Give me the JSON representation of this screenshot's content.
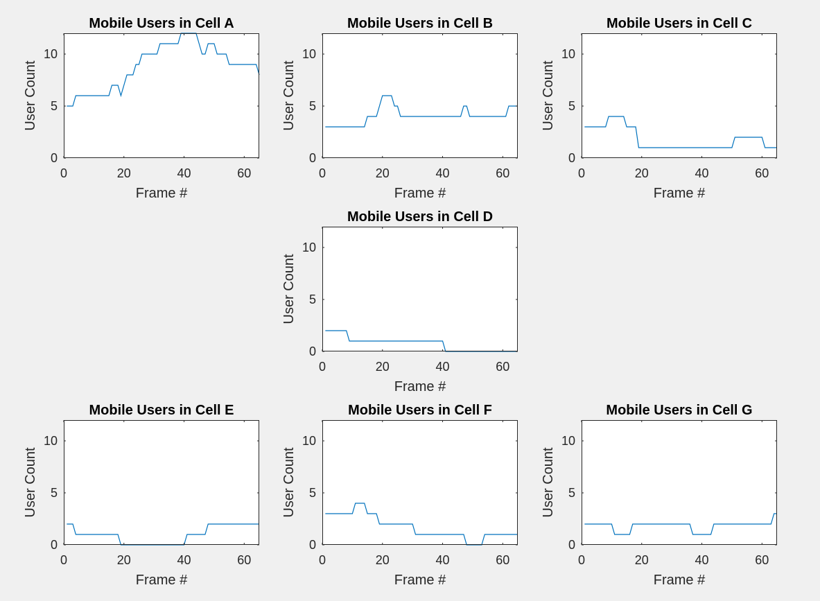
{
  "colors": {
    "figure_bg": "#f0f0f0",
    "axes_bg": "#ffffff",
    "axis": "#262626",
    "line": "#0072bd"
  },
  "chart_data": [
    {
      "type": "line",
      "title": "Mobile Users in Cell A",
      "xlabel": "Frame #",
      "ylabel": "User Count",
      "xlim": [
        0,
        65
      ],
      "ylim": [
        0,
        12
      ],
      "xticks": [
        0,
        20,
        40,
        60
      ],
      "yticks": [
        0,
        5,
        10
      ],
      "grid": false,
      "series": [
        {
          "x": [
            1,
            2,
            3,
            4,
            5,
            6,
            7,
            8,
            9,
            10,
            11,
            12,
            13,
            14,
            15,
            16,
            17,
            18,
            19,
            20,
            21,
            22,
            23,
            24,
            25,
            26,
            27,
            28,
            29,
            30,
            31,
            32,
            33,
            34,
            35,
            36,
            37,
            38,
            39,
            40,
            41,
            42,
            43,
            44,
            45,
            46,
            47,
            48,
            49,
            50,
            51,
            52,
            53,
            54,
            55,
            56,
            57,
            58,
            59,
            60,
            61,
            62,
            63,
            64,
            65
          ],
          "y": [
            5,
            5,
            5,
            6,
            6,
            6,
            6,
            6,
            6,
            6,
            6,
            6,
            6,
            6,
            6,
            7,
            7,
            7,
            6,
            7,
            8,
            8,
            8,
            9,
            9,
            10,
            10,
            10,
            10,
            10,
            10,
            11,
            11,
            11,
            11,
            11,
            11,
            11,
            12,
            12,
            12,
            12,
            12,
            12,
            11,
            10,
            10,
            11,
            11,
            11,
            10,
            10,
            10,
            10,
            9,
            9,
            9,
            9,
            9,
            9,
            9,
            9,
            9,
            9,
            8
          ]
        }
      ]
    },
    {
      "type": "line",
      "title": "Mobile Users in Cell B",
      "xlabel": "Frame #",
      "ylabel": "User Count",
      "xlim": [
        0,
        65
      ],
      "ylim": [
        0,
        12
      ],
      "xticks": [
        0,
        20,
        40,
        60
      ],
      "yticks": [
        0,
        5,
        10
      ],
      "grid": false,
      "series": [
        {
          "x": [
            1,
            2,
            3,
            4,
            5,
            6,
            7,
            8,
            9,
            10,
            11,
            12,
            13,
            14,
            15,
            16,
            17,
            18,
            19,
            20,
            21,
            22,
            23,
            24,
            25,
            26,
            27,
            28,
            29,
            30,
            31,
            32,
            33,
            34,
            35,
            36,
            37,
            38,
            39,
            40,
            41,
            42,
            43,
            44,
            45,
            46,
            47,
            48,
            49,
            50,
            51,
            52,
            53,
            54,
            55,
            56,
            57,
            58,
            59,
            60,
            61,
            62,
            63,
            64,
            65
          ],
          "y": [
            3,
            3,
            3,
            3,
            3,
            3,
            3,
            3,
            3,
            3,
            3,
            3,
            3,
            3,
            4,
            4,
            4,
            4,
            5,
            6,
            6,
            6,
            6,
            5,
            5,
            4,
            4,
            4,
            4,
            4,
            4,
            4,
            4,
            4,
            4,
            4,
            4,
            4,
            4,
            4,
            4,
            4,
            4,
            4,
            4,
            4,
            5,
            5,
            4,
            4,
            4,
            4,
            4,
            4,
            4,
            4,
            4,
            4,
            4,
            4,
            4,
            5,
            5,
            5,
            5
          ]
        }
      ]
    },
    {
      "type": "line",
      "title": "Mobile Users in Cell C",
      "xlabel": "Frame #",
      "ylabel": "User Count",
      "xlim": [
        0,
        65
      ],
      "ylim": [
        0,
        12
      ],
      "xticks": [
        0,
        20,
        40,
        60
      ],
      "yticks": [
        0,
        5,
        10
      ],
      "grid": false,
      "series": [
        {
          "x": [
            1,
            2,
            3,
            4,
            5,
            6,
            7,
            8,
            9,
            10,
            11,
            12,
            13,
            14,
            15,
            16,
            17,
            18,
            19,
            20,
            21,
            22,
            23,
            24,
            25,
            26,
            27,
            28,
            29,
            30,
            31,
            32,
            33,
            34,
            35,
            36,
            37,
            38,
            39,
            40,
            41,
            42,
            43,
            44,
            45,
            46,
            47,
            48,
            49,
            50,
            51,
            52,
            53,
            54,
            55,
            56,
            57,
            58,
            59,
            60,
            61,
            62,
            63,
            64,
            65
          ],
          "y": [
            3,
            3,
            3,
            3,
            3,
            3,
            3,
            3,
            4,
            4,
            4,
            4,
            4,
            4,
            3,
            3,
            3,
            3,
            1,
            1,
            1,
            1,
            1,
            1,
            1,
            1,
            1,
            1,
            1,
            1,
            1,
            1,
            1,
            1,
            1,
            1,
            1,
            1,
            1,
            1,
            1,
            1,
            1,
            1,
            1,
            1,
            1,
            1,
            1,
            1,
            2,
            2,
            2,
            2,
            2,
            2,
            2,
            2,
            2,
            2,
            1,
            1,
            1,
            1,
            1
          ]
        }
      ]
    },
    {
      "type": "line",
      "title": "Mobile Users in Cell D",
      "xlabel": "Frame #",
      "ylabel": "User Count",
      "xlim": [
        0,
        65
      ],
      "ylim": [
        0,
        12
      ],
      "xticks": [
        0,
        20,
        40,
        60
      ],
      "yticks": [
        0,
        5,
        10
      ],
      "grid": false,
      "series": [
        {
          "x": [
            1,
            2,
            3,
            4,
            5,
            6,
            7,
            8,
            9,
            10,
            11,
            12,
            13,
            14,
            15,
            16,
            17,
            18,
            19,
            20,
            21,
            22,
            23,
            24,
            25,
            26,
            27,
            28,
            29,
            30,
            31,
            32,
            33,
            34,
            35,
            36,
            37,
            38,
            39,
            40,
            41,
            42,
            43,
            44,
            45,
            46,
            47,
            48,
            49,
            50,
            51,
            52,
            53,
            54,
            55,
            56,
            57,
            58,
            59,
            60,
            61,
            62,
            63,
            64,
            65
          ],
          "y": [
            2,
            2,
            2,
            2,
            2,
            2,
            2,
            2,
            1,
            1,
            1,
            1,
            1,
            1,
            1,
            1,
            1,
            1,
            1,
            1,
            1,
            1,
            1,
            1,
            1,
            1,
            1,
            1,
            1,
            1,
            1,
            1,
            1,
            1,
            1,
            1,
            1,
            1,
            1,
            1,
            0,
            0,
            0,
            0,
            0,
            0,
            0,
            0,
            0,
            0,
            0,
            0,
            0,
            0,
            0,
            0,
            0,
            0,
            0,
            0,
            0,
            0,
            0,
            0,
            0
          ]
        }
      ]
    },
    {
      "type": "line",
      "title": "Mobile Users in Cell E",
      "xlabel": "Frame #",
      "ylabel": "User Count",
      "xlim": [
        0,
        65
      ],
      "ylim": [
        0,
        12
      ],
      "xticks": [
        0,
        20,
        40,
        60
      ],
      "yticks": [
        0,
        5,
        10
      ],
      "grid": false,
      "series": [
        {
          "x": [
            1,
            2,
            3,
            4,
            5,
            6,
            7,
            8,
            9,
            10,
            11,
            12,
            13,
            14,
            15,
            16,
            17,
            18,
            19,
            20,
            21,
            22,
            23,
            24,
            25,
            26,
            27,
            28,
            29,
            30,
            31,
            32,
            33,
            34,
            35,
            36,
            37,
            38,
            39,
            40,
            41,
            42,
            43,
            44,
            45,
            46,
            47,
            48,
            49,
            50,
            51,
            52,
            53,
            54,
            55,
            56,
            57,
            58,
            59,
            60,
            61,
            62,
            63,
            64,
            65
          ],
          "y": [
            2,
            2,
            2,
            1,
            1,
            1,
            1,
            1,
            1,
            1,
            1,
            1,
            1,
            1,
            1,
            1,
            1,
            1,
            0,
            0,
            0,
            0,
            0,
            0,
            0,
            0,
            0,
            0,
            0,
            0,
            0,
            0,
            0,
            0,
            0,
            0,
            0,
            0,
            0,
            0,
            1,
            1,
            1,
            1,
            1,
            1,
            1,
            2,
            2,
            2,
            2,
            2,
            2,
            2,
            2,
            2,
            2,
            2,
            2,
            2,
            2,
            2,
            2,
            2,
            2
          ]
        }
      ]
    },
    {
      "type": "line",
      "title": "Mobile Users in Cell F",
      "xlabel": "Frame #",
      "ylabel": "User Count",
      "xlim": [
        0,
        65
      ],
      "ylim": [
        0,
        12
      ],
      "xticks": [
        0,
        20,
        40,
        60
      ],
      "yticks": [
        0,
        5,
        10
      ],
      "grid": false,
      "series": [
        {
          "x": [
            1,
            2,
            3,
            4,
            5,
            6,
            7,
            8,
            9,
            10,
            11,
            12,
            13,
            14,
            15,
            16,
            17,
            18,
            19,
            20,
            21,
            22,
            23,
            24,
            25,
            26,
            27,
            28,
            29,
            30,
            31,
            32,
            33,
            34,
            35,
            36,
            37,
            38,
            39,
            40,
            41,
            42,
            43,
            44,
            45,
            46,
            47,
            48,
            49,
            50,
            51,
            52,
            53,
            54,
            55,
            56,
            57,
            58,
            59,
            60,
            61,
            62,
            63,
            64,
            65
          ],
          "y": [
            3,
            3,
            3,
            3,
            3,
            3,
            3,
            3,
            3,
            3,
            4,
            4,
            4,
            4,
            3,
            3,
            3,
            3,
            2,
            2,
            2,
            2,
            2,
            2,
            2,
            2,
            2,
            2,
            2,
            2,
            1,
            1,
            1,
            1,
            1,
            1,
            1,
            1,
            1,
            1,
            1,
            1,
            1,
            1,
            1,
            1,
            1,
            0,
            0,
            0,
            0,
            0,
            0,
            1,
            1,
            1,
            1,
            1,
            1,
            1,
            1,
            1,
            1,
            1,
            1
          ]
        }
      ]
    },
    {
      "type": "line",
      "title": "Mobile Users in Cell G",
      "xlabel": "Frame #",
      "ylabel": "User Count",
      "xlim": [
        0,
        65
      ],
      "ylim": [
        0,
        12
      ],
      "xticks": [
        0,
        20,
        40,
        60
      ],
      "yticks": [
        0,
        5,
        10
      ],
      "grid": false,
      "series": [
        {
          "x": [
            1,
            2,
            3,
            4,
            5,
            6,
            7,
            8,
            9,
            10,
            11,
            12,
            13,
            14,
            15,
            16,
            17,
            18,
            19,
            20,
            21,
            22,
            23,
            24,
            25,
            26,
            27,
            28,
            29,
            30,
            31,
            32,
            33,
            34,
            35,
            36,
            37,
            38,
            39,
            40,
            41,
            42,
            43,
            44,
            45,
            46,
            47,
            48,
            49,
            50,
            51,
            52,
            53,
            54,
            55,
            56,
            57,
            58,
            59,
            60,
            61,
            62,
            63,
            64,
            65
          ],
          "y": [
            2,
            2,
            2,
            2,
            2,
            2,
            2,
            2,
            2,
            2,
            1,
            1,
            1,
            1,
            1,
            1,
            2,
            2,
            2,
            2,
            2,
            2,
            2,
            2,
            2,
            2,
            2,
            2,
            2,
            2,
            2,
            2,
            2,
            2,
            2,
            2,
            1,
            1,
            1,
            1,
            1,
            1,
            1,
            2,
            2,
            2,
            2,
            2,
            2,
            2,
            2,
            2,
            2,
            2,
            2,
            2,
            2,
            2,
            2,
            2,
            2,
            2,
            2,
            3,
            3
          ]
        }
      ]
    }
  ]
}
